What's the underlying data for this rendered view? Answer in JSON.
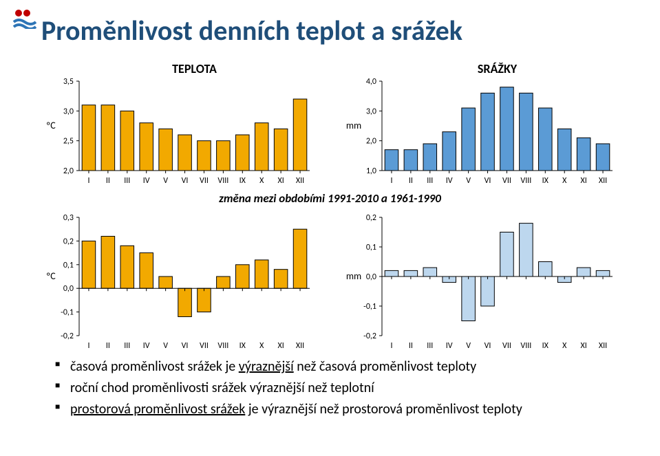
{
  "title": "Proměnlivost denních teplot a srážek",
  "between_label": "změna mezi obdobími 1991-2010 a 1961-1990",
  "months": [
    "I",
    "II",
    "III",
    "IV",
    "V",
    "VI",
    "VII",
    "VIII",
    "IX",
    "X",
    "XI",
    "XII"
  ],
  "chart_top_left": {
    "type": "bar",
    "subtitle": "TEPLOTA",
    "y_unit": "ºC",
    "ylim": [
      2.0,
      3.5
    ],
    "ytick_step": 0.5,
    "values": [
      3.1,
      3.1,
      3.0,
      2.8,
      2.7,
      2.6,
      2.5,
      2.5,
      2.6,
      2.8,
      2.7,
      3.2
    ],
    "bar_color": "#f2a900",
    "bar_border": "#000000",
    "axis_color": "#000000",
    "tick_font": 12,
    "title_font": 18
  },
  "chart_top_right": {
    "type": "bar",
    "subtitle": "SRÁŽKY",
    "y_unit": "mm",
    "ylim": [
      1.0,
      4.0
    ],
    "ytick_step": 1.0,
    "values": [
      1.7,
      1.7,
      1.9,
      2.3,
      3.1,
      3.6,
      3.8,
      3.6,
      3.1,
      2.4,
      2.1,
      1.9
    ],
    "bar_color": "#5b9bd5",
    "bar_border": "#000000",
    "axis_color": "#000000",
    "tick_font": 12,
    "title_font": 18
  },
  "chart_mid_left": {
    "type": "bar",
    "y_unit": "ºC",
    "ylim": [
      -0.2,
      0.3
    ],
    "ytick_step": 0.1,
    "values": [
      0.2,
      0.22,
      0.18,
      0.15,
      0.05,
      -0.12,
      -0.1,
      0.05,
      0.1,
      0.12,
      0.08,
      0.25
    ],
    "bar_color": "#f2a900",
    "bar_border": "#000000",
    "axis_color": "#000000",
    "tick_font": 12
  },
  "chart_mid_right": {
    "type": "bar",
    "y_unit": "mm",
    "ylim": [
      -0.2,
      0.2
    ],
    "ytick_step": 0.1,
    "values": [
      0.02,
      0.02,
      0.03,
      -0.02,
      -0.15,
      -0.1,
      0.15,
      0.18,
      0.05,
      -0.02,
      0.03,
      0.02
    ],
    "bar_color": "#bdd7ee",
    "bar_border": "#000000",
    "axis_color": "#000000",
    "tick_font": 12
  },
  "bullets": [
    {
      "pre": "časová proměnlivost srážek je ",
      "u": "výraznější",
      "post": " než časová proměnlivost teploty"
    },
    {
      "pre": "roční chod proměnlivosti srážek výraznější než teplotní",
      "u": "",
      "post": ""
    },
    {
      "pre": "",
      "u": "prostorová proměnlivost srážek",
      "post": " je výraznější než prostorová proměnlivost teploty"
    }
  ],
  "logo_colors": {
    "red": "#c00000",
    "blue": "#2e75b6"
  }
}
